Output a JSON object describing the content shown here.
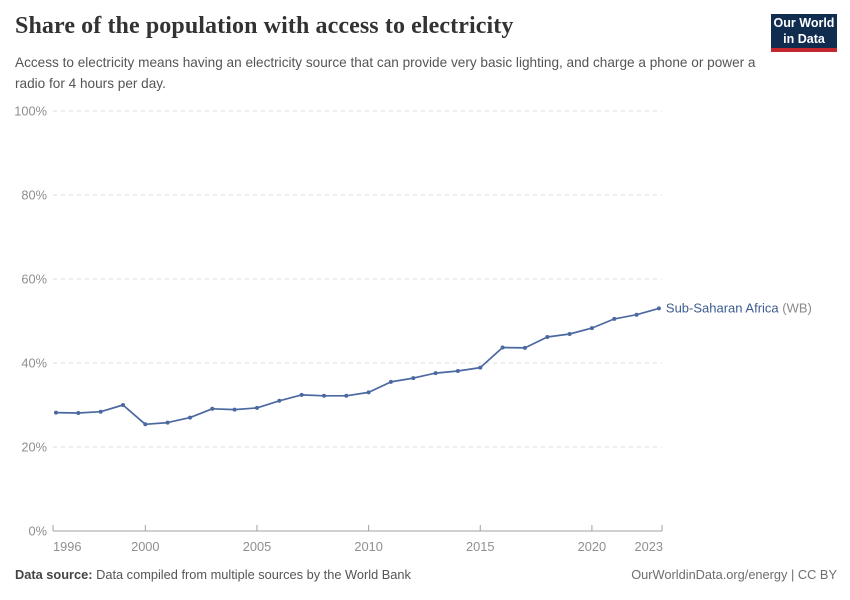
{
  "header": {
    "title": "Share of the population with access to electricity",
    "subtitle": "Access to electricity means having an electricity source that can provide very basic lighting, and charge a phone or power a radio for 4 hours per day.",
    "logo": {
      "line1": "Our World",
      "line2": "in Data",
      "bg_color": "#102d50",
      "stripe_color": "#c4262e"
    }
  },
  "chart_data": {
    "type": "line",
    "title": "Share of the population with access to electricity",
    "x": [
      1996,
      1997,
      1998,
      1999,
      2000,
      2001,
      2002,
      2003,
      2004,
      2005,
      2006,
      2007,
      2008,
      2009,
      2010,
      2011,
      2012,
      2013,
      2014,
      2015,
      2016,
      2017,
      2018,
      2019,
      2020,
      2021,
      2022,
      2023
    ],
    "series": [
      {
        "name": "Sub-Saharan Africa (WB)",
        "values": [
          28.2,
          28.1,
          28.4,
          30.0,
          25.4,
          25.8,
          27.0,
          29.1,
          28.9,
          29.3,
          31.0,
          32.4,
          32.2,
          32.2,
          33.0,
          35.5,
          36.4,
          37.6,
          38.1,
          38.9,
          43.7,
          43.6,
          46.2,
          46.9,
          48.3,
          50.5,
          51.5,
          53.0
        ]
      }
    ],
    "ylim": [
      0,
      100
    ],
    "yticks": [
      {
        "value": 0,
        "label": "0%"
      },
      {
        "value": 20,
        "label": "20%"
      },
      {
        "value": 40,
        "label": "40%"
      },
      {
        "value": 60,
        "label": "60%"
      },
      {
        "value": 80,
        "label": "80%"
      },
      {
        "value": 100,
        "label": "100%"
      }
    ],
    "xticks": [
      {
        "value": 1996,
        "label": "1996"
      },
      {
        "value": 2000,
        "label": "2000"
      },
      {
        "value": 2005,
        "label": "2005"
      },
      {
        "value": 2010,
        "label": "2010"
      },
      {
        "value": 2015,
        "label": "2015"
      },
      {
        "value": 2020,
        "label": "2020"
      },
      {
        "value": 2023,
        "label": "2023"
      }
    ],
    "grid": "horizontal-dashed",
    "legend_position": "end-of-line",
    "legend": {
      "label_main": "Sub-Saharan Africa",
      "label_suffix": " (WB)"
    },
    "colors": {
      "line": "#4b69a0",
      "legend_main": "#3d5c8f",
      "legend_suffix": "#8a8a8a",
      "grid": "#dedede",
      "axis": "#a0a0a0",
      "axis_text": "#8f8f8f"
    }
  },
  "footer": {
    "source_label": "Data source:",
    "source_text": " Data compiled from multiple sources by the World Bank",
    "link": "OurWorldinData.org/energy",
    "separator": " | ",
    "license": "CC BY"
  }
}
